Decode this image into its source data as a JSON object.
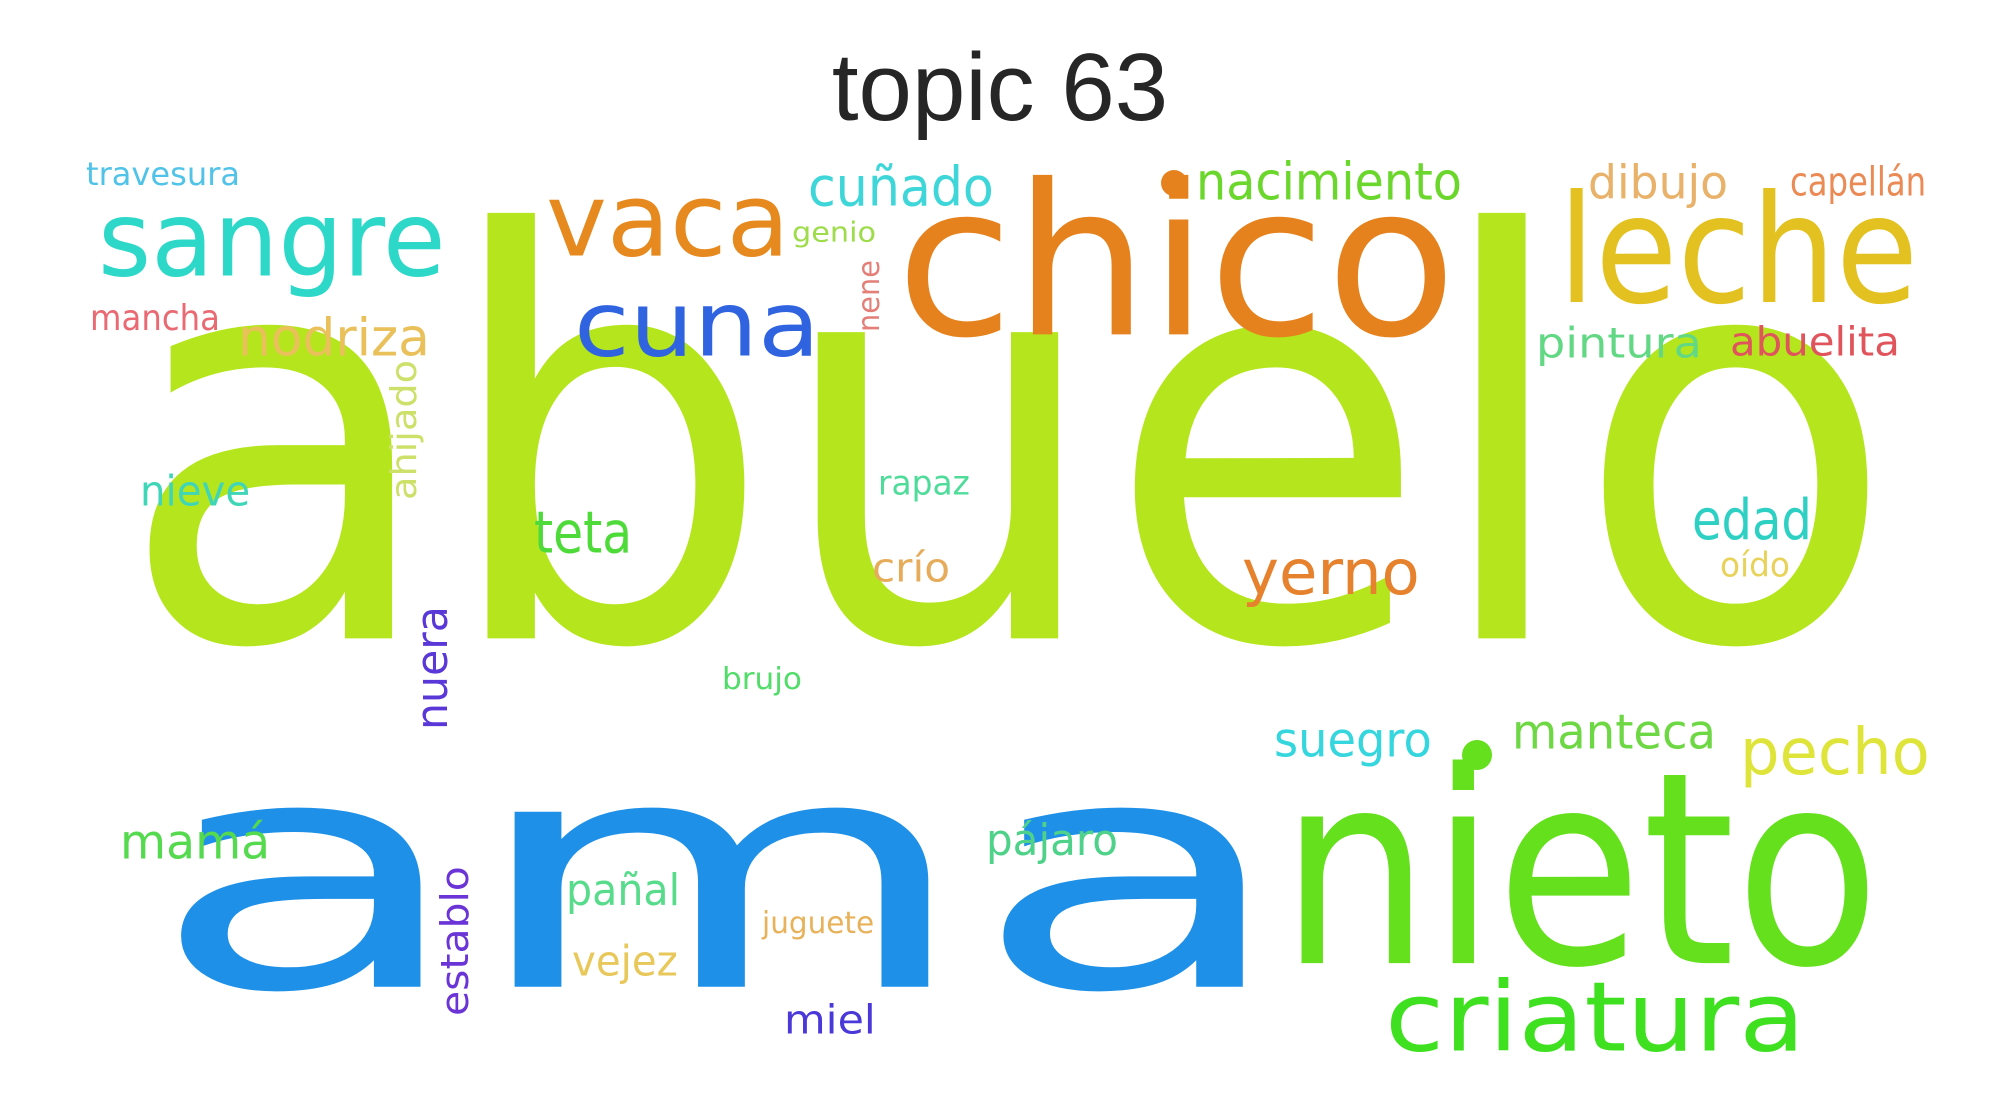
{
  "title": "topic 63",
  "words": [
    {
      "text": "abuelo",
      "color": "#b5e61d"
    },
    {
      "text": "ama",
      "color": "#1e90e8"
    },
    {
      "text": "chico",
      "color": "#e6821e"
    },
    {
      "text": "nieto",
      "color": "#64e01c"
    },
    {
      "text": "leche",
      "color": "#e3c121"
    },
    {
      "text": "sangre",
      "color": "#2ed8c8"
    },
    {
      "text": "vaca",
      "color": "#e6891e"
    },
    {
      "text": "cuna",
      "color": "#2f63e0"
    },
    {
      "text": "criatura",
      "color": "#3fe020"
    },
    {
      "text": "yerno",
      "color": "#e6822e"
    },
    {
      "text": "pecho",
      "color": "#dfe43a"
    },
    {
      "text": "edad",
      "color": "#2fd0c4"
    },
    {
      "text": "teta",
      "color": "#4edb3a"
    },
    {
      "text": "nacimiento",
      "color": "#6bd62c"
    },
    {
      "text": "cuñado",
      "color": "#3ed6d8"
    },
    {
      "text": "manteca",
      "color": "#6ed744"
    },
    {
      "text": "suegro",
      "color": "#35d6dd"
    },
    {
      "text": "mamá",
      "color": "#55d94f"
    },
    {
      "text": "nodriza",
      "color": "#e9c05a"
    },
    {
      "text": "dibujo",
      "color": "#e9b26a"
    },
    {
      "text": "capellán",
      "color": "#ea8a55"
    },
    {
      "text": "pintura",
      "color": "#62d885"
    },
    {
      "text": "abuelita",
      "color": "#e0545b"
    },
    {
      "text": "pájaro",
      "color": "#4ed28a"
    },
    {
      "text": "pañal",
      "color": "#58dc8c"
    },
    {
      "text": "vejez",
      "color": "#e8c85a"
    },
    {
      "text": "miel",
      "color": "#4a38d8"
    },
    {
      "text": "nieve",
      "color": "#3fd6b8"
    },
    {
      "text": "mancha",
      "color": "#e96a72"
    },
    {
      "text": "travesura",
      "color": "#51c3e8"
    },
    {
      "text": "rapaz",
      "color": "#4fdc9a"
    },
    {
      "text": "crío",
      "color": "#e7ac5a"
    },
    {
      "text": "oído",
      "color": "#e8d25a"
    },
    {
      "text": "brujo",
      "color": "#52dc6a"
    },
    {
      "text": "juguete",
      "color": "#e8b25a"
    },
    {
      "text": "genio",
      "color": "#9edc4c"
    },
    {
      "text": "nene",
      "color": "#e47f78"
    },
    {
      "text": "ahijado",
      "color": "#cde06a"
    },
    {
      "text": "nuera",
      "color": "#5a38d8"
    },
    {
      "text": "establo",
      "color": "#6a34d6"
    }
  ],
  "dots": [
    {
      "color": "#e6821e"
    },
    {
      "color": "#64e01c"
    }
  ]
}
